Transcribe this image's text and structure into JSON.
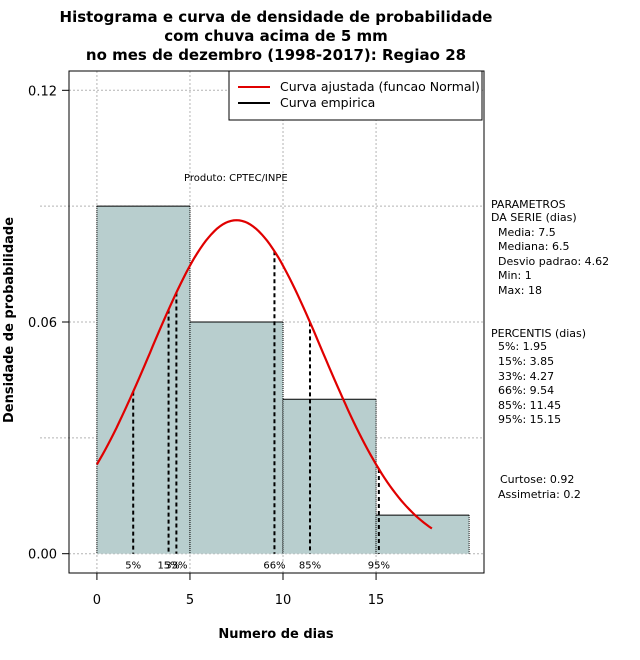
{
  "chart_data": {
    "type": "bar",
    "title_lines": [
      "Histograma e curva de densidade de probabilidade",
      "com chuva acima de 5 mm",
      "no mes de dezembro (1998-2017): Regiao 28"
    ],
    "xlabel": "Numero de dias",
    "ylabel": "Densidade de probabilidade",
    "xlim": [
      -1.5,
      20.8
    ],
    "ylim": [
      -0.005,
      0.125
    ],
    "x_ticks": [
      0,
      5,
      10,
      15
    ],
    "x_tick_labels": [
      "0",
      "5",
      "10",
      "15"
    ],
    "y_ticks": [
      0.0,
      0.06,
      0.12
    ],
    "y_tick_labels": [
      "0.00",
      "0.06",
      "0.12"
    ],
    "grid": true,
    "bins": [
      {
        "x0": 0,
        "x1": 5,
        "density": 0.09
      },
      {
        "x0": 5,
        "x1": 10,
        "density": 0.06
      },
      {
        "x0": 10,
        "x1": 15,
        "density": 0.04
      },
      {
        "x0": 15,
        "x1": 20,
        "density": 0.01
      }
    ],
    "bar_color": "#b8cece",
    "normal_curve": {
      "mean": 7.5,
      "sd": 4.62,
      "x_from": 0,
      "x_to": 18,
      "color": "#e00000"
    },
    "percentile_lines": [
      {
        "x": 1.95,
        "label": "5%"
      },
      {
        "x": 3.85,
        "label": "15%"
      },
      {
        "x": 4.27,
        "label": "33%"
      },
      {
        "x": 9.54,
        "label": "66%"
      },
      {
        "x": 11.45,
        "label": "85%"
      },
      {
        "x": 15.15,
        "label": "95%"
      }
    ],
    "legend": {
      "position": "top-right",
      "entries": [
        {
          "label": "Curva ajustada (funcao Normal)",
          "color": "#e00000"
        },
        {
          "label": "Curva empirica",
          "color": "#000000"
        }
      ]
    },
    "annotation": "Produto: CPTEC/INPE"
  },
  "stats_panel": {
    "parametros_lines": [
      "PARAMETROS",
      "DA SERIE (dias)"
    ],
    "parametros": [
      "Media: 7.5",
      "Mediana: 6.5",
      "Desvio padrao: 4.62",
      "Min: 1",
      "Max: 18"
    ],
    "percentis_title": "PERCENTIS (dias)",
    "percentis": [
      "5%: 1.95",
      "15%: 3.85",
      "33%: 4.27",
      "66%: 9.54",
      "85%: 11.45",
      "95%: 15.15"
    ],
    "extra": [
      "Curtose: 0.92",
      "Assimetria: 0.2"
    ]
  }
}
